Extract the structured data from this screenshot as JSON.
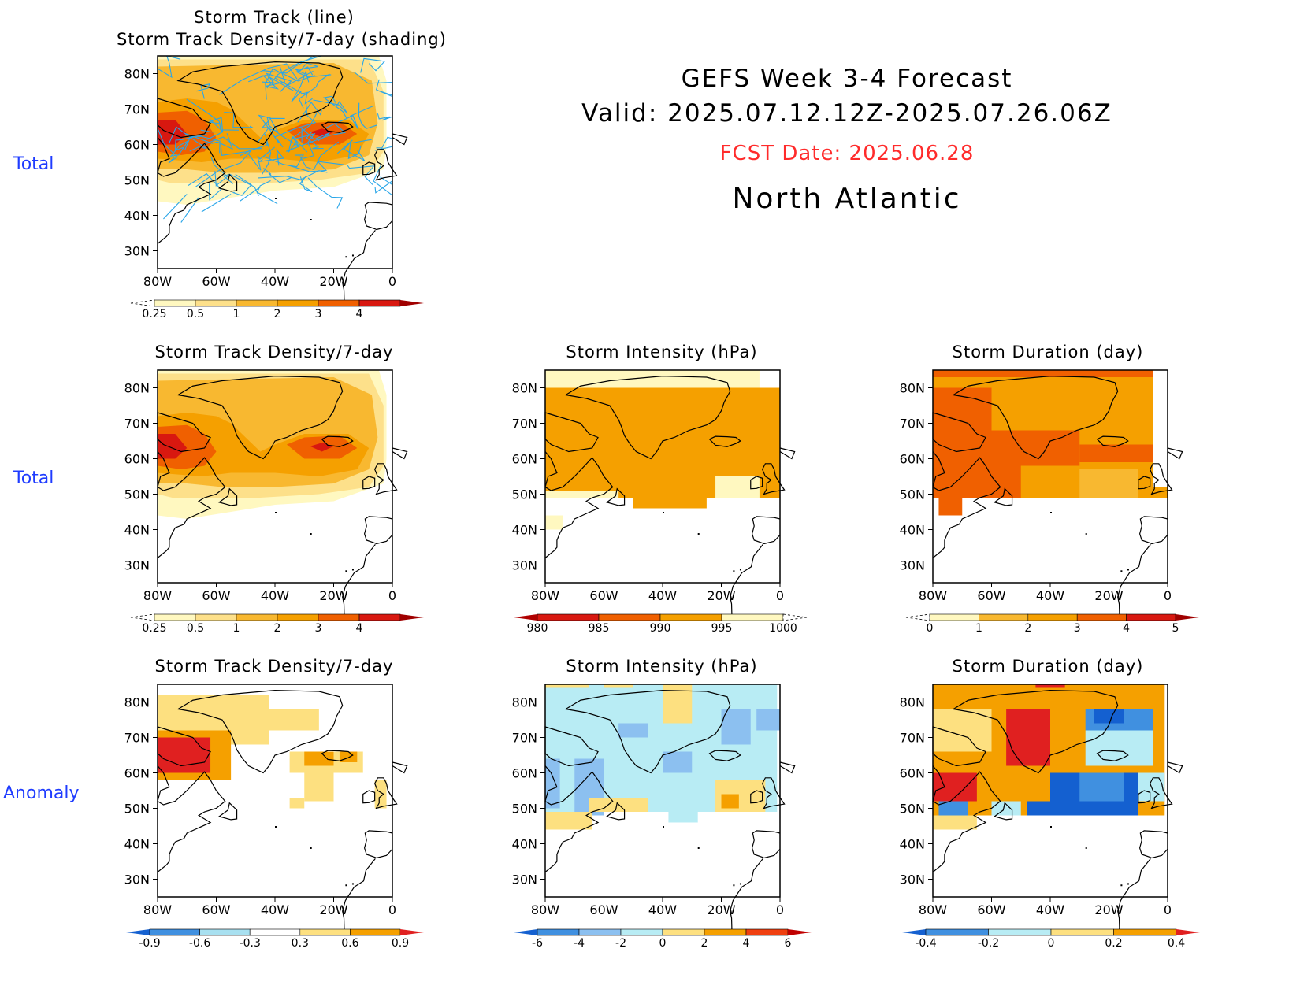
{
  "header": {
    "title_line1": "GEFS Week 3-4 Forecast",
    "title_line2": "Valid: 2025.07.12.12Z-2025.07.26.06Z",
    "fcst_date": "FCST Date: 2025.06.28",
    "region": "North Atlantic"
  },
  "row_labels": {
    "row1": "Total",
    "row2": "Total",
    "row3": "Anomaly"
  },
  "axes": {
    "lat_ticks": [
      "80N",
      "70N",
      "60N",
      "50N",
      "40N",
      "30N"
    ],
    "lon_ticks": [
      "80W",
      "60W",
      "40W",
      "20W",
      "0"
    ]
  },
  "panels": {
    "p1": {
      "title1": "Storm Track (line)",
      "title2": "Storm Track Density/7-day (shading)",
      "cbar": [
        "0.25",
        "0.5",
        "1",
        "2",
        "3",
        "4"
      ],
      "colors": [
        "#fff8c0",
        "#fde08a",
        "#f8b830",
        "#f5a000",
        "#f06000",
        "#d81810",
        "#a00000"
      ],
      "track_color": "#2aa6e8"
    },
    "p2": {
      "title": "Storm Track Density/7-day",
      "cbar": [
        "0.25",
        "0.5",
        "1",
        "2",
        "3",
        "4"
      ],
      "colors": [
        "#fff8c0",
        "#fde08a",
        "#f8b830",
        "#f5a000",
        "#f06000",
        "#d81810",
        "#a00000"
      ]
    },
    "p3": {
      "title": "Storm Intensity (hPa)",
      "cbar": [
        "980",
        "985",
        "990",
        "995",
        "1000"
      ],
      "colors": [
        "#b00000",
        "#d81810",
        "#f06000",
        "#f5a000",
        "#fff8c0"
      ]
    },
    "p4": {
      "title": "Storm Duration (day)",
      "cbar": [
        "0",
        "1",
        "2",
        "3",
        "4",
        "5"
      ],
      "colors": [
        "#fff8c0",
        "#f8b830",
        "#f5a000",
        "#f06000",
        "#d81810",
        "#a00000"
      ]
    },
    "p5": {
      "title": "Storm Track Density/7-day",
      "cbar": [
        "-0.9",
        "-0.6",
        "-0.3",
        "0.3",
        "0.6",
        "0.9"
      ],
      "colors": [
        "#1460d0",
        "#4090e0",
        "#a8e0f0",
        "#ffffff",
        "#fde080",
        "#f5a000",
        "#e02020"
      ]
    },
    "p6": {
      "title": "Storm Intensity (hPa)",
      "cbar": [
        "-6",
        "-4",
        "-2",
        "0",
        "2",
        "4",
        "6"
      ],
      "colors": [
        "#1460d0",
        "#4090e0",
        "#8cc0f0",
        "#b8ecf4",
        "#fde080",
        "#f5a000",
        "#f04010",
        "#c00000"
      ]
    },
    "p7": {
      "title": "Storm Duration (day)",
      "cbar": [
        "-0.4",
        "-0.2",
        "0",
        "0.2",
        "0.4"
      ],
      "colors": [
        "#1460d0",
        "#4090e0",
        "#b8ecf4",
        "#fde080",
        "#f5a000",
        "#e02020"
      ]
    }
  }
}
